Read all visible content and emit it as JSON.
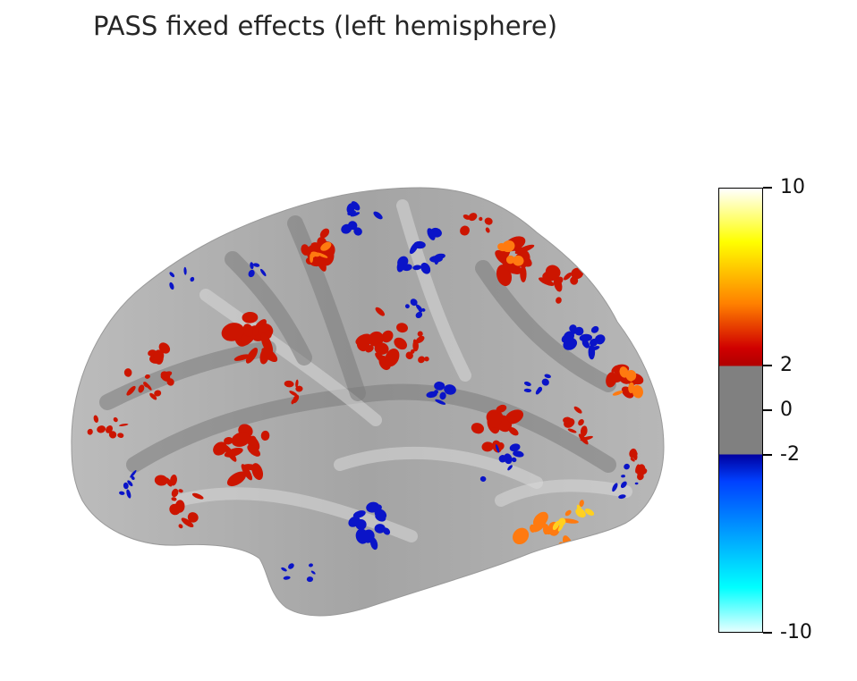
{
  "title": "PASS fixed effects (left hemisphere)",
  "colorbar": {
    "ticks": [
      "10",
      "2",
      "0",
      "-2",
      "-10"
    ],
    "vmax": 10,
    "vmin": -10,
    "threshold": 2,
    "colors": {
      "top": "#ffffff",
      "hot_yellow": "#ffff00",
      "hot_orange": "#ff8000",
      "hot_red": "#d00000",
      "hot_dark": "#b00000",
      "neutral": "#808080",
      "cold_dark": "#0000a0",
      "cold_blue": "#0040ff",
      "cold_cyan": "#00ffff",
      "bottom": "#e6ffff"
    }
  },
  "brain": {
    "view": "lateral",
    "hemisphere": "left",
    "surface_color": "#a8a8a8",
    "positive_color": "#cc1500",
    "negative_color": "#0a14c8"
  }
}
